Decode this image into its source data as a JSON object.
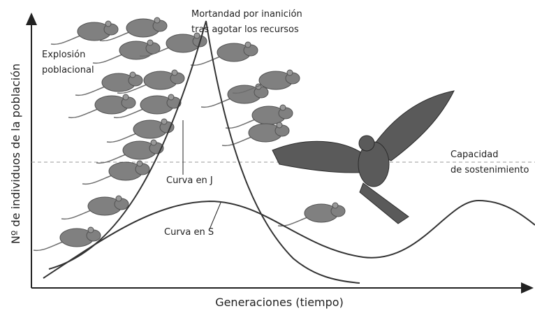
{
  "axes": {
    "y_label": "Nº de individuos de la población",
    "x_label": "Generaciones (tiempo)"
  },
  "annotations": {
    "starvation": [
      "Mortandad por inanición",
      "tras agotar los recursos"
    ],
    "explosion": [
      "Explosión",
      "poblacional"
    ],
    "j_curve": "Curva en J",
    "s_curve": "Curva en S",
    "capacity": [
      "Capacidad",
      "de sostenimiento"
    ]
  }
}
